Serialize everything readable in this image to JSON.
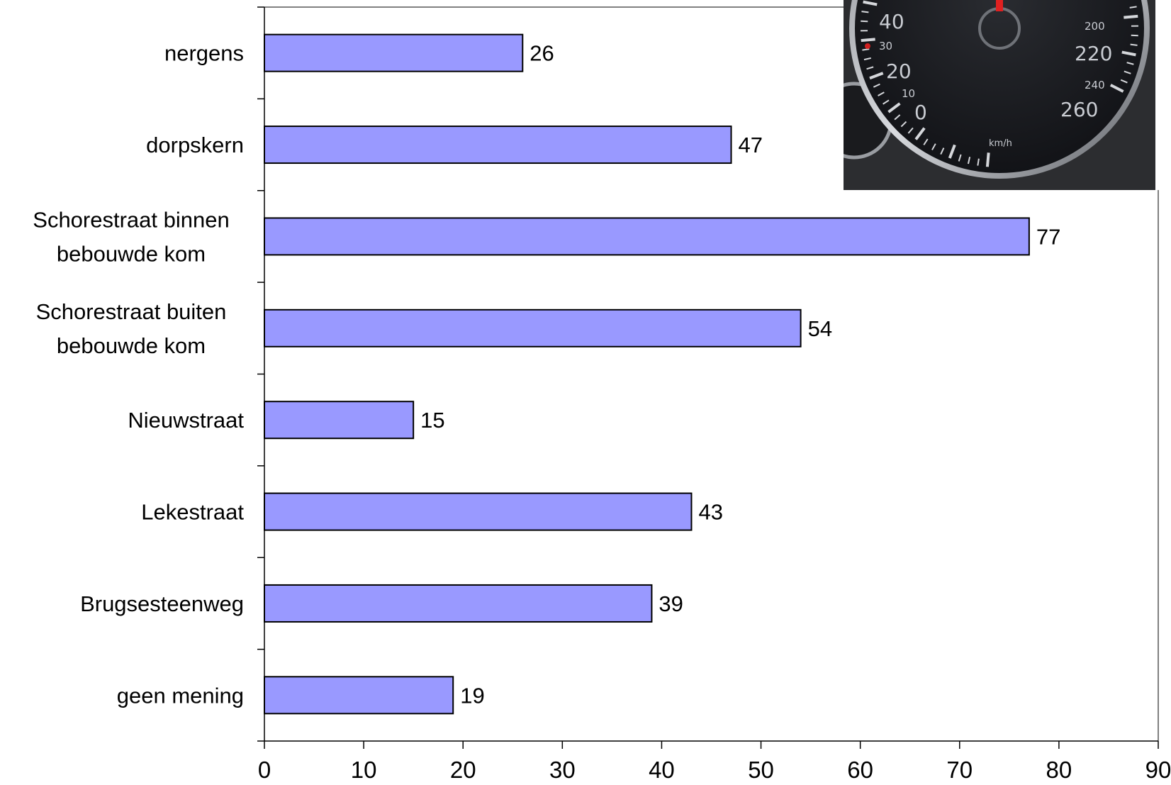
{
  "chart_data": {
    "type": "bar",
    "orientation": "horizontal",
    "title": "",
    "xlabel": "",
    "ylabel": "",
    "categories": [
      "nergens",
      "dorpskern",
      "Schorestraat binnen bebouwde kom",
      "Schorestraat buiten bebouwde kom",
      "Nieuwstraat",
      "Lekestraat",
      "Brugsesteenweg",
      "geen mening"
    ],
    "category_lines": [
      [
        "nergens"
      ],
      [
        "dorpskern"
      ],
      [
        "Schorestraat binnen",
        "bebouwde kom"
      ],
      [
        "Schorestraat buiten",
        "bebouwde kom"
      ],
      [
        "Nieuwstraat"
      ],
      [
        "Lekestraat"
      ],
      [
        "Brugsesteenweg"
      ],
      [
        "geen mening"
      ]
    ],
    "values": [
      26,
      47,
      77,
      54,
      15,
      43,
      39,
      19
    ],
    "xlim": [
      0,
      90
    ],
    "xticks": [
      0,
      10,
      20,
      30,
      40,
      50,
      60,
      70,
      80,
      90
    ],
    "grid": false,
    "legend": "none",
    "bar_color": "#9999ff",
    "bar_edge_color": "#000000"
  },
  "inset_photo": {
    "description_icon": "speedometer-icon",
    "speed_labels_large": [
      "40",
      "20",
      "0",
      "220",
      "260"
    ],
    "speed_labels_small": [
      "30",
      "10",
      "200",
      "240"
    ],
    "unit": "km/h",
    "dial_color": "#1b1c20",
    "needle_color": "#e02020"
  }
}
